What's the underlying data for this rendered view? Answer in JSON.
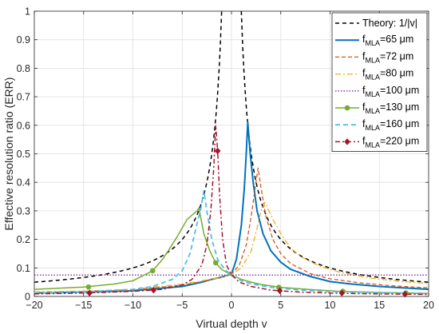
{
  "chart_data": {
    "type": "line",
    "xlabel": "Virtual depth v",
    "ylabel": "Effective resolution ratio (ERR)",
    "xlim": [
      -20,
      20
    ],
    "ylim": [
      0,
      1
    ],
    "x_ticks": [
      -20,
      -15,
      -10,
      -5,
      0,
      5,
      10,
      15,
      20
    ],
    "y_ticks": [
      0,
      0.1,
      0.2,
      0.3,
      0.4,
      0.5,
      0.6,
      0.7,
      0.8,
      0.9,
      1
    ],
    "x_tick_labels": [
      "−20",
      "−15",
      "−10",
      "−5",
      "0",
      "5",
      "10",
      "15",
      "20"
    ],
    "y_tick_labels": [
      "0",
      "0.1",
      "0.2",
      "0.3",
      "0.4",
      "0.5",
      "0.6",
      "0.7",
      "0.8",
      "0.9",
      "1"
    ],
    "grid": true,
    "legend_position": "top-right",
    "theory": {
      "label": "Theory: 1/|v|",
      "color": "#000000",
      "dash": "5,4",
      "description": "y = 1/|v|"
    },
    "series": [
      {
        "legend_main": "f",
        "legend_sub": "MLA",
        "legend_rest": "=65 μm",
        "color": "#0072BD",
        "dash": "",
        "width": 2.0,
        "marker": "none",
        "points": [
          [
            -20,
            0.012
          ],
          [
            -15,
            0.015
          ],
          [
            -10,
            0.02
          ],
          [
            -5,
            0.035
          ],
          [
            -3,
            0.05
          ],
          [
            -2,
            0.06
          ],
          [
            -1,
            0.068
          ],
          [
            0,
            0.078
          ],
          [
            0.5,
            0.13
          ],
          [
            1.0,
            0.25
          ],
          [
            1.3,
            0.38
          ],
          [
            1.5,
            0.5
          ],
          [
            1.65,
            0.61
          ],
          [
            1.9,
            0.5
          ],
          [
            2.2,
            0.4
          ],
          [
            2.6,
            0.3
          ],
          [
            3.2,
            0.22
          ],
          [
            4,
            0.16
          ],
          [
            5,
            0.12
          ],
          [
            6,
            0.095
          ],
          [
            8,
            0.07
          ],
          [
            10,
            0.052
          ],
          [
            12,
            0.044
          ],
          [
            15,
            0.035
          ],
          [
            20,
            0.025
          ]
        ]
      },
      {
        "legend_main": "f",
        "legend_sub": "MLA",
        "legend_rest": "=72 μm",
        "color": "#D95319",
        "dash": "5,3",
        "width": 1.3,
        "marker": "none",
        "points": [
          [
            -20,
            0.014
          ],
          [
            -15,
            0.017
          ],
          [
            -10,
            0.022
          ],
          [
            -5,
            0.04
          ],
          [
            -3,
            0.052
          ],
          [
            -1,
            0.066
          ],
          [
            0,
            0.078
          ],
          [
            0.8,
            0.11
          ],
          [
            1.5,
            0.18
          ],
          [
            2.0,
            0.28
          ],
          [
            2.4,
            0.38
          ],
          [
            2.7,
            0.45
          ],
          [
            3.0,
            0.38
          ],
          [
            3.5,
            0.28
          ],
          [
            4.2,
            0.2
          ],
          [
            5,
            0.15
          ],
          [
            6,
            0.115
          ],
          [
            8,
            0.08
          ],
          [
            10,
            0.062
          ],
          [
            13,
            0.048
          ],
          [
            16,
            0.038
          ],
          [
            20,
            0.03
          ]
        ]
      },
      {
        "legend_main": "f",
        "legend_sub": "MLA",
        "legend_rest": "=80 μm",
        "color": "#EDB120",
        "dash": "7,3,2,3",
        "width": 1.3,
        "marker": "none",
        "points": [
          [
            -20,
            0.016
          ],
          [
            -15,
            0.019
          ],
          [
            -10,
            0.025
          ],
          [
            -5,
            0.043
          ],
          [
            -3,
            0.055
          ],
          [
            -1,
            0.067
          ],
          [
            0,
            0.078
          ],
          [
            1,
            0.1
          ],
          [
            2,
            0.16
          ],
          [
            2.6,
            0.24
          ],
          [
            3.0,
            0.3
          ],
          [
            3.4,
            0.33
          ],
          [
            4.2,
            0.27
          ],
          [
            5,
            0.22
          ],
          [
            6,
            0.17
          ],
          [
            7,
            0.14
          ],
          [
            9,
            0.105
          ],
          [
            11,
            0.085
          ],
          [
            14,
            0.065
          ],
          [
            17,
            0.053
          ],
          [
            20,
            0.045
          ]
        ]
      },
      {
        "legend_main": "f",
        "legend_sub": "MLA",
        "legend_rest": "=100 μm",
        "color": "#7E2F8E",
        "dash": "1.5,2",
        "width": 1.3,
        "marker": "none",
        "points": [
          [
            -20,
            0.075
          ],
          [
            20,
            0.075
          ]
        ]
      },
      {
        "legend_main": "f",
        "legend_sub": "MLA",
        "legend_rest": "=130 μm",
        "color": "#77AC30",
        "dash": "",
        "width": 1.5,
        "marker": "circle",
        "marker_points": [
          [
            -14.5,
            0.033
          ],
          [
            -8,
            0.09
          ],
          [
            -1.6,
            0.118
          ],
          [
            4.8,
            0.032
          ],
          [
            11.3,
            0.018
          ],
          [
            17.7,
            0.012
          ]
        ],
        "points": [
          [
            -20,
            0.025
          ],
          [
            -15,
            0.033
          ],
          [
            -12,
            0.043
          ],
          [
            -10,
            0.055
          ],
          [
            -8,
            0.09
          ],
          [
            -7,
            0.13
          ],
          [
            -6.5,
            0.155
          ],
          [
            -5.5,
            0.21
          ],
          [
            -4.5,
            0.27
          ],
          [
            -3.5,
            0.3
          ],
          [
            -3.3,
            0.31
          ],
          [
            -2.8,
            0.22
          ],
          [
            -2.2,
            0.16
          ],
          [
            -1.6,
            0.118
          ],
          [
            -1,
            0.095
          ],
          [
            0,
            0.075
          ],
          [
            1,
            0.06
          ],
          [
            2,
            0.05
          ],
          [
            3,
            0.042
          ],
          [
            5,
            0.032
          ],
          [
            8,
            0.024
          ],
          [
            11,
            0.018
          ],
          [
            15,
            0.014
          ],
          [
            20,
            0.011
          ]
        ]
      },
      {
        "legend_main": "f",
        "legend_sub": "MLA",
        "legend_rest": "=160 μm",
        "color": "#4DBEEE",
        "dash": "6,4",
        "width": 1.8,
        "marker": "none",
        "points": [
          [
            -20,
            0.012
          ],
          [
            -15,
            0.016
          ],
          [
            -10,
            0.025
          ],
          [
            -8,
            0.035
          ],
          [
            -6,
            0.06
          ],
          [
            -5,
            0.09
          ],
          [
            -4.2,
            0.15
          ],
          [
            -3.6,
            0.24
          ],
          [
            -3.1,
            0.31
          ],
          [
            -2.8,
            0.37
          ],
          [
            -2.5,
            0.3
          ],
          [
            -2.0,
            0.2
          ],
          [
            -1.4,
            0.13
          ],
          [
            -0.7,
            0.095
          ],
          [
            0,
            0.075
          ],
          [
            1,
            0.055
          ],
          [
            2,
            0.044
          ],
          [
            4,
            0.032
          ],
          [
            7,
            0.022
          ],
          [
            10,
            0.017
          ],
          [
            15,
            0.013
          ],
          [
            20,
            0.01
          ]
        ]
      },
      {
        "legend_main": "f",
        "legend_sub": "MLA",
        "legend_rest": "=220 μm",
        "color": "#A2142F",
        "dash": "6,3,2,3",
        "width": 1.5,
        "marker": "diamond",
        "marker_points": [
          [
            -14.4,
            0.012
          ],
          [
            -7.9,
            0.022
          ],
          [
            -1.4,
            0.51
          ],
          [
            4.9,
            0.02
          ],
          [
            11.2,
            0.012
          ],
          [
            17.6,
            0.008
          ]
        ],
        "points": [
          [
            -20,
            0.009
          ],
          [
            -15,
            0.012
          ],
          [
            -10,
            0.018
          ],
          [
            -7,
            0.025
          ],
          [
            -5,
            0.04
          ],
          [
            -4,
            0.06
          ],
          [
            -3,
            0.11
          ],
          [
            -2.5,
            0.18
          ],
          [
            -2.1,
            0.3
          ],
          [
            -1.8,
            0.45
          ],
          [
            -1.6,
            0.6
          ],
          [
            -1.4,
            0.51
          ],
          [
            -1.2,
            0.35
          ],
          [
            -0.9,
            0.2
          ],
          [
            -0.5,
            0.11
          ],
          [
            0,
            0.075
          ],
          [
            0.8,
            0.05
          ],
          [
            2,
            0.035
          ],
          [
            4,
            0.022
          ],
          [
            7,
            0.015
          ],
          [
            11,
            0.011
          ],
          [
            15,
            0.009
          ],
          [
            20,
            0.007
          ]
        ]
      }
    ]
  }
}
